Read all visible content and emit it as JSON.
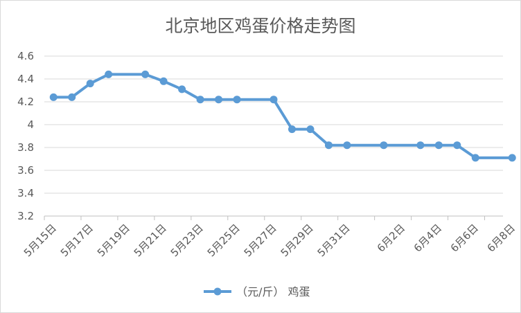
{
  "chart_data": {
    "type": "line",
    "title": "北京地区鸡蛋价格走势图",
    "xlabel": "",
    "ylabel": "",
    "ylim": [
      3.2,
      4.6
    ],
    "y_ticks": [
      "3.2",
      "3.4",
      "3.6",
      "3.8",
      "4",
      "4.2",
      "4.4",
      "4.6"
    ],
    "x_ticks": [
      "5月15日",
      "5月17日",
      "5月19日",
      "5月21日",
      "5月23日",
      "5月25日",
      "5月27日",
      "5月29日",
      "5月31日",
      "6月2日",
      "6月4日",
      "6月6日",
      "6月8日"
    ],
    "grid": true,
    "legend_position": "bottom",
    "color": "#5b9bd5",
    "series": [
      {
        "name": "（元/斤） 鸡蛋",
        "points": [
          {
            "x": "5月15日",
            "y": 4.24
          },
          {
            "x": "5月16日",
            "y": 4.24
          },
          {
            "x": "5月17日",
            "y": 4.36
          },
          {
            "x": "5月18日",
            "y": 4.44
          },
          {
            "x": "5月20日",
            "y": 4.44
          },
          {
            "x": "5月21日",
            "y": 4.38
          },
          {
            "x": "5月22日",
            "y": 4.31
          },
          {
            "x": "5月23日",
            "y": 4.22
          },
          {
            "x": "5月24日",
            "y": 4.22
          },
          {
            "x": "5月25日",
            "y": 4.22
          },
          {
            "x": "5月27日",
            "y": 4.22
          },
          {
            "x": "5月28日",
            "y": 3.96
          },
          {
            "x": "5月29日",
            "y": 3.96
          },
          {
            "x": "5月30日",
            "y": 3.82
          },
          {
            "x": "5月31日",
            "y": 3.82
          },
          {
            "x": "6月1日",
            "y": 3.82
          },
          {
            "x": "6月3日",
            "y": 3.82
          },
          {
            "x": "6月4日",
            "y": 3.82
          },
          {
            "x": "6月5日",
            "y": 3.82
          },
          {
            "x": "6月6日",
            "y": 3.71
          },
          {
            "x": "6月8日",
            "y": 3.71
          }
        ]
      }
    ]
  }
}
